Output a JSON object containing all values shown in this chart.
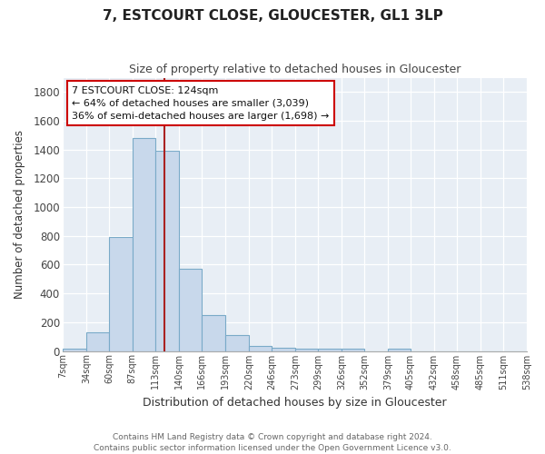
{
  "title": "7, ESTCOURT CLOSE, GLOUCESTER, GL1 3LP",
  "subtitle": "Size of property relative to detached houses in Gloucester",
  "xlabel": "Distribution of detached houses by size in Gloucester",
  "ylabel": "Number of detached properties",
  "bar_color": "#c8d8eb",
  "bar_edge_color": "#7aaac8",
  "background_color": "#e8eef5",
  "grid_color": "#ffffff",
  "bins": [
    7,
    34,
    60,
    87,
    113,
    140,
    166,
    193,
    220,
    246,
    273,
    299,
    326,
    352,
    379,
    405,
    432,
    458,
    485,
    511,
    538
  ],
  "values": [
    18,
    132,
    792,
    1478,
    1390,
    572,
    248,
    113,
    34,
    25,
    16,
    16,
    16,
    0,
    18,
    0,
    0,
    0,
    0,
    0
  ],
  "tick_labels": [
    "7sqm",
    "34sqm",
    "60sqm",
    "87sqm",
    "113sqm",
    "140sqm",
    "166sqm",
    "193sqm",
    "220sqm",
    "246sqm",
    "273sqm",
    "299sqm",
    "326sqm",
    "352sqm",
    "379sqm",
    "405sqm",
    "432sqm",
    "458sqm",
    "485sqm",
    "511sqm",
    "538sqm"
  ],
  "red_line_x": 124,
  "annotation_line1": "7 ESTCOURT CLOSE: 124sqm",
  "annotation_line2": "← 64% of detached houses are smaller (3,039)",
  "annotation_line3": "36% of semi-detached houses are larger (1,698) →",
  "ylim": [
    0,
    1900
  ],
  "yticks": [
    0,
    200,
    400,
    600,
    800,
    1000,
    1200,
    1400,
    1600,
    1800
  ],
  "footer_text": "Contains HM Land Registry data © Crown copyright and database right 2024.\nContains public sector information licensed under the Open Government Licence v3.0.",
  "fig_width": 6.0,
  "fig_height": 5.0
}
